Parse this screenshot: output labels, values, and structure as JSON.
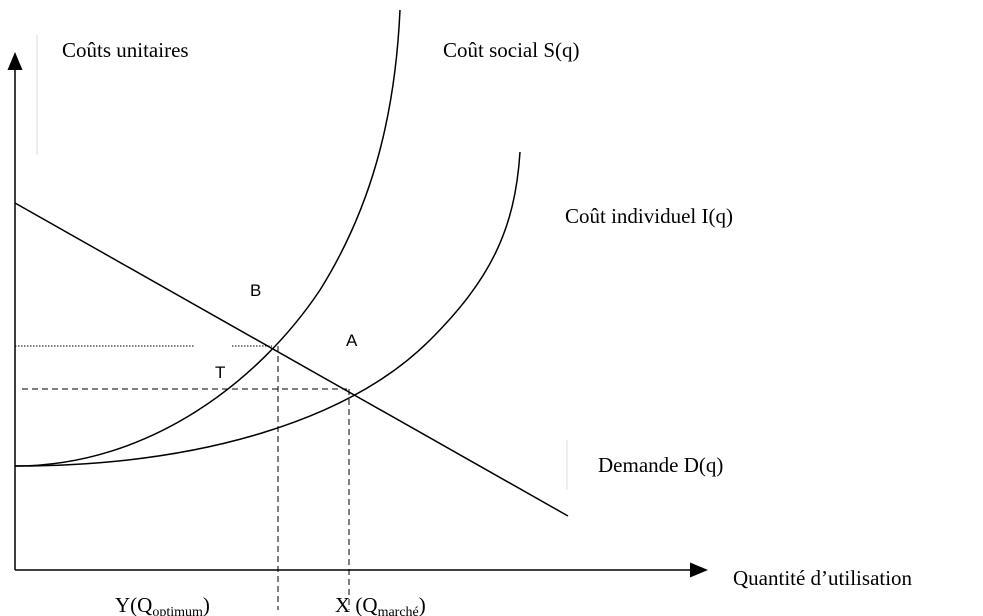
{
  "axes": {
    "y_label": "Coûts unitaires",
    "x_label": "Quantité d’utilisation"
  },
  "curves": {
    "social": "Coût social S(q)",
    "individual": "Coût individuel I(q)",
    "demand": "Demande D(q)"
  },
  "points": {
    "b": "B",
    "a": "A",
    "t": "T"
  },
  "quantities": {
    "optimum": {
      "main": "Y(Q",
      "sub": "optimum",
      "end": ")"
    },
    "market": {
      "main": "X (Q",
      "sub": "marché",
      "end": ")"
    }
  }
}
